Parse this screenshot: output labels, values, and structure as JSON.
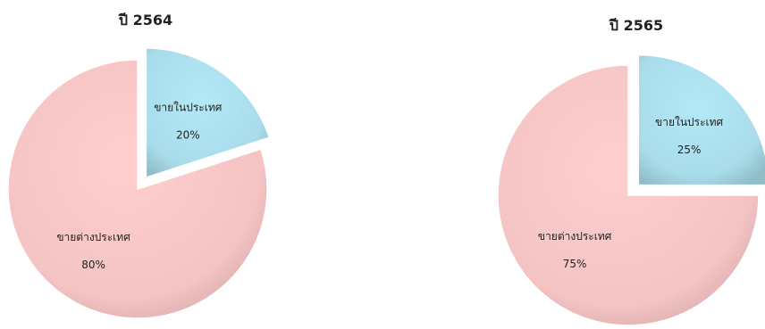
{
  "colors": {
    "domestic": "#a9dcea",
    "domestic_dark": "#6fbfd3",
    "foreign": "#f4c3c3",
    "foreign_dark": "#d99a9a",
    "text": "#222222"
  },
  "chart_data": [
    {
      "type": "pie",
      "title": "ปี 2564",
      "exploded": "ขายในประเทศ",
      "slices": [
        {
          "label": "ขายในประเทศ",
          "value": 20,
          "value_label": "20%",
          "color": "#a9dcea"
        },
        {
          "label": "ขายต่างประเทศ",
          "value": 80,
          "value_label": "80%",
          "color": "#f4c3c3"
        }
      ]
    },
    {
      "type": "pie",
      "title": "ปี 2565",
      "exploded": "ขายในประเทศ",
      "slices": [
        {
          "label": "ขายในประเทศ",
          "value": 25,
          "value_label": "25%",
          "color": "#a9dcea"
        },
        {
          "label": "ขายต่างประเทศ",
          "value": 75,
          "value_label": "75%",
          "color": "#f4c3c3"
        }
      ]
    }
  ]
}
